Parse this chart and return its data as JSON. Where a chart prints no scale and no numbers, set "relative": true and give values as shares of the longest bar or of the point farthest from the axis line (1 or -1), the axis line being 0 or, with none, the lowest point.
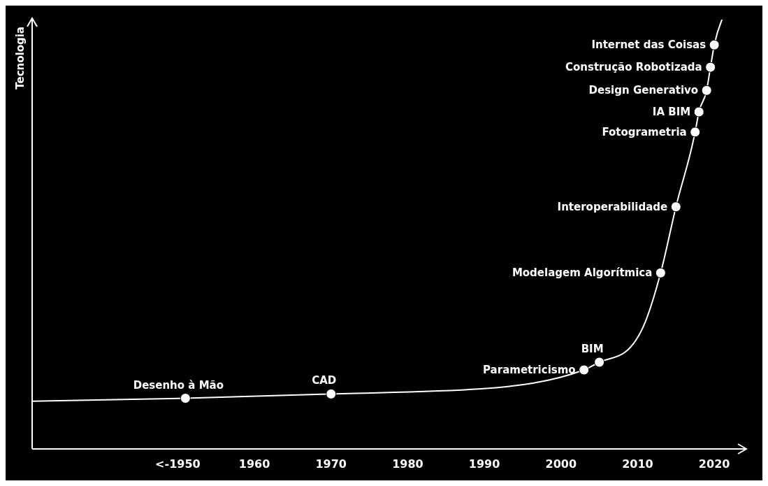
{
  "chart_data": {
    "type": "line",
    "relative": true,
    "ylabel": "Tecnologia",
    "xlim": [
      1931,
      2024
    ],
    "xticks": [
      {
        "value": 1950,
        "label": "<-1950"
      },
      1960,
      1970,
      1980,
      1990,
      2000,
      2010,
      2020
    ],
    "series": [
      {
        "type": "line",
        "color": "#ffffff",
        "x": [
          1931,
          1951,
          1970,
          1989.6,
          2003,
          2005,
          2008.4,
          2011,
          2013,
          2015,
          2017.5,
          2018,
          2019,
          2019.5,
          2020,
          2021
        ],
        "values": [
          0.111,
          0.118,
          0.128,
          0.14,
          0.184,
          0.202,
          0.226,
          0.296,
          0.41,
          0.564,
          0.738,
          0.785,
          0.835,
          0.889,
          0.941,
          1
        ]
      },
      {
        "type": "scatter",
        "color": "#ffffff",
        "marker": "circle",
        "x": [
          1951,
          1970,
          2003,
          2005,
          2013,
          2015,
          2017.5,
          2018,
          2019,
          2019.5,
          2020
        ],
        "values": [
          0.118,
          0.128,
          0.184,
          0.202,
          0.41,
          0.564,
          0.738,
          0.785,
          0.835,
          0.889,
          0.941
        ]
      }
    ],
    "annotations": [
      {
        "text": "Desenho à Mão",
        "x": 1951,
        "y": 0.118
      },
      {
        "text": "CAD",
        "x": 1970,
        "y": 0.128
      },
      {
        "text": "Parametricismo",
        "x": 2003,
        "y": 0.184
      },
      {
        "text": "BIM",
        "x": 2005,
        "y": 0.202
      },
      {
        "text": "Modelagem Algorítmica",
        "x": 2013,
        "y": 0.41
      },
      {
        "text": "Interoperabilidade",
        "x": 2015,
        "y": 0.564
      },
      {
        "text": "Fotogrametria",
        "x": 2017.5,
        "y": 0.738
      },
      {
        "text": "IA BIM",
        "x": 2018,
        "y": 0.785
      },
      {
        "text": "Design Generativo",
        "x": 2019,
        "y": 0.835
      },
      {
        "text": "Construção Robotizada",
        "x": 2019.5,
        "y": 0.889
      },
      {
        "text": "Internet das Coisas",
        "x": 2020,
        "y": 0.941
      }
    ]
  }
}
